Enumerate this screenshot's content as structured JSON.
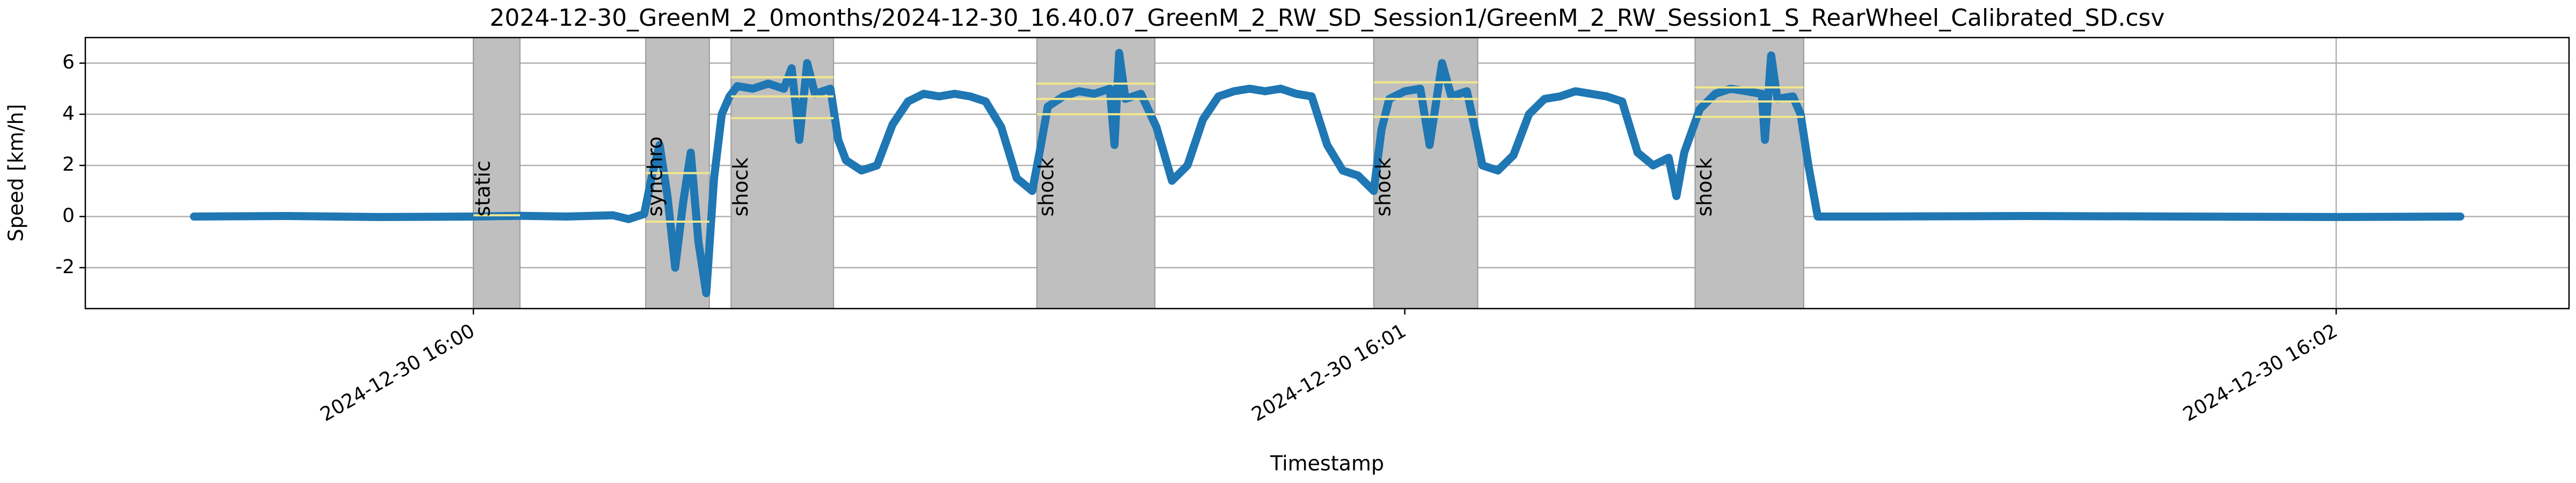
{
  "chart_data": {
    "type": "line",
    "title": "2024-12-30_GreenM_2_0months/2024-12-30_16.40.07_GreenM_2_RW_SD_Session1/GreenM_2_RW_Session1_S_RearWheel_Calibrated_SD.csv",
    "xlabel": "Timestamp",
    "ylabel": "Speed [km/h]",
    "xlim": [
      "2024-12-30 15:59:35",
      "2024-12-30 16:02:15"
    ],
    "xticks": [
      "2024-12-30 16:00",
      "2024-12-30 16:01",
      "2024-12-30 16:02"
    ],
    "ylim": [
      -3.6,
      7.0
    ],
    "yticks": [
      -2,
      0,
      2,
      4,
      6
    ],
    "grid": true,
    "spans": [
      {
        "label": "static",
        "start": "2024-12-30 16:00:00",
        "end": "2024-12-30 16:00:03",
        "levels": [
          0.05
        ]
      },
      {
        "label": "synchro",
        "start": "2024-12-30 16:00:11.1",
        "end": "2024-12-30 16:00:15.2",
        "levels": [
          1.7,
          -0.2
        ]
      },
      {
        "label": "shock",
        "start": "2024-12-30 16:00:16.6",
        "end": "2024-12-30 16:00:23.2",
        "levels": [
          5.45,
          4.7,
          3.85
        ]
      },
      {
        "label": "shock",
        "start": "2024-12-30 16:00:36.3",
        "end": "2024-12-30 16:00:43.9",
        "levels": [
          5.2,
          4.6,
          4.0
        ]
      },
      {
        "label": "shock",
        "start": "2024-12-30 16:00:58",
        "end": "2024-12-30 16:01:04.7",
        "levels": [
          5.25,
          4.6,
          3.9
        ]
      },
      {
        "label": "shock",
        "start": "2024-12-30 16:01:18.7",
        "end": "2024-12-30 16:01:25.7",
        "levels": [
          5.05,
          4.5,
          3.9
        ]
      }
    ],
    "x": [
      "2024-12-30 15:59:42",
      "2024-12-30 15:59:48",
      "2024-12-30 15:59:54",
      "2024-12-30 16:00:00",
      "2024-12-30 16:00:03",
      "2024-12-30 16:00:06",
      "2024-12-30 16:00:09",
      "2024-12-30 16:00:10",
      "2024-12-30 16:00:11",
      "2024-12-30 16:00:11.5",
      "2024-12-30 16:00:12",
      "2024-12-30 16:00:12.5",
      "2024-12-30 16:00:13",
      "2024-12-30 16:00:13.5",
      "2024-12-30 16:00:14",
      "2024-12-30 16:00:14.5",
      "2024-12-30 16:00:15",
      "2024-12-30 16:00:15.5",
      "2024-12-30 16:00:16",
      "2024-12-30 16:00:16.5",
      "2024-12-30 16:00:17",
      "2024-12-30 16:00:18",
      "2024-12-30 16:00:19",
      "2024-12-30 16:00:20",
      "2024-12-30 16:00:20.5",
      "2024-12-30 16:00:21",
      "2024-12-30 16:00:21.5",
      "2024-12-30 16:00:22",
      "2024-12-30 16:00:23",
      "2024-12-30 16:00:23.5",
      "2024-12-30 16:00:24",
      "2024-12-30 16:00:25",
      "2024-12-30 16:00:26",
      "2024-12-30 16:00:27",
      "2024-12-30 16:00:28",
      "2024-12-30 16:00:29",
      "2024-12-30 16:00:30",
      "2024-12-30 16:00:31",
      "2024-12-30 16:00:32",
      "2024-12-30 16:00:33",
      "2024-12-30 16:00:34",
      "2024-12-30 16:00:35",
      "2024-12-30 16:00:36",
      "2024-12-30 16:00:36.5",
      "2024-12-30 16:00:37",
      "2024-12-30 16:00:38",
      "2024-12-30 16:00:39",
      "2024-12-30 16:00:40",
      "2024-12-30 16:00:41",
      "2024-12-30 16:00:41.3",
      "2024-12-30 16:00:41.6",
      "2024-12-30 16:00:42",
      "2024-12-30 16:00:43",
      "2024-12-30 16:00:44",
      "2024-12-30 16:00:45",
      "2024-12-30 16:00:46",
      "2024-12-30 16:00:47",
      "2024-12-30 16:00:48",
      "2024-12-30 16:00:49",
      "2024-12-30 16:00:50",
      "2024-12-30 16:00:51",
      "2024-12-30 16:00:52",
      "2024-12-30 16:00:53",
      "2024-12-30 16:00:54",
      "2024-12-30 16:00:55",
      "2024-12-30 16:00:56",
      "2024-12-30 16:00:57",
      "2024-12-30 16:00:58",
      "2024-12-30 16:00:58.5",
      "2024-12-30 16:00:59",
      "2024-12-30 16:01:00",
      "2024-12-30 16:01:01",
      "2024-12-30 16:01:01.6",
      "2024-12-30 16:01:02.4",
      "2024-12-30 16:01:03",
      "2024-12-30 16:01:04",
      "2024-12-30 16:01:04.5",
      "2024-12-30 16:01:05",
      "2024-12-30 16:01:06",
      "2024-12-30 16:01:07",
      "2024-12-30 16:01:08",
      "2024-12-30 16:01:09",
      "2024-12-30 16:01:10",
      "2024-12-30 16:01:11",
      "2024-12-30 16:01:12",
      "2024-12-30 16:01:13",
      "2024-12-30 16:01:14",
      "2024-12-30 16:01:15",
      "2024-12-30 16:01:16",
      "2024-12-30 16:01:17",
      "2024-12-30 16:01:17.5",
      "2024-12-30 16:01:18",
      "2024-12-30 16:01:19",
      "2024-12-30 16:01:20",
      "2024-12-30 16:01:21",
      "2024-12-30 16:01:22",
      "2024-12-30 16:01:23",
      "2024-12-30 16:01:23.2",
      "2024-12-30 16:01:23.6",
      "2024-12-30 16:01:24",
      "2024-12-30 16:01:25",
      "2024-12-30 16:01:25.5",
      "2024-12-30 16:01:26",
      "2024-12-30 16:01:26.6",
      "2024-12-30 16:01:30",
      "2024-12-30 16:01:40",
      "2024-12-30 16:01:50",
      "2024-12-30 16:02:00",
      "2024-12-30 16:02:08"
    ],
    "series": [
      {
        "name": "Speed",
        "color": "#1f77b4",
        "values": [
          0,
          0.02,
          -0.02,
          0,
          0.03,
          0,
          0.05,
          -0.1,
          0.1,
          1.6,
          2.8,
          0.8,
          -2.0,
          0.5,
          2.5,
          -1,
          -3.0,
          1.5,
          4.0,
          4.7,
          5.1,
          5.0,
          5.2,
          5.0,
          5.8,
          3.0,
          6.0,
          4.8,
          5.0,
          3.0,
          2.2,
          1.8,
          2.0,
          3.6,
          4.5,
          4.8,
          4.7,
          4.8,
          4.7,
          4.5,
          3.5,
          1.5,
          1.0,
          2.6,
          4.3,
          4.7,
          4.9,
          4.8,
          5.0,
          2.8,
          6.4,
          4.6,
          4.8,
          3.5,
          1.4,
          2.0,
          3.8,
          4.7,
          4.9,
          5.0,
          4.9,
          5.0,
          4.8,
          4.7,
          2.8,
          1.8,
          1.6,
          1.0,
          3.4,
          4.6,
          4.9,
          5.0,
          2.8,
          6.0,
          4.7,
          4.9,
          3.5,
          2.0,
          1.8,
          2.4,
          4.0,
          4.6,
          4.7,
          4.9,
          4.8,
          4.7,
          4.5,
          2.5,
          2.0,
          2.3,
          0.8,
          2.5,
          4.2,
          4.8,
          5.0,
          4.9,
          4.8,
          3.0,
          6.3,
          4.6,
          4.7,
          4.0,
          2.0,
          0.0,
          0.0,
          0.02,
          0.0,
          -0.02,
          0.0
        ]
      }
    ]
  }
}
